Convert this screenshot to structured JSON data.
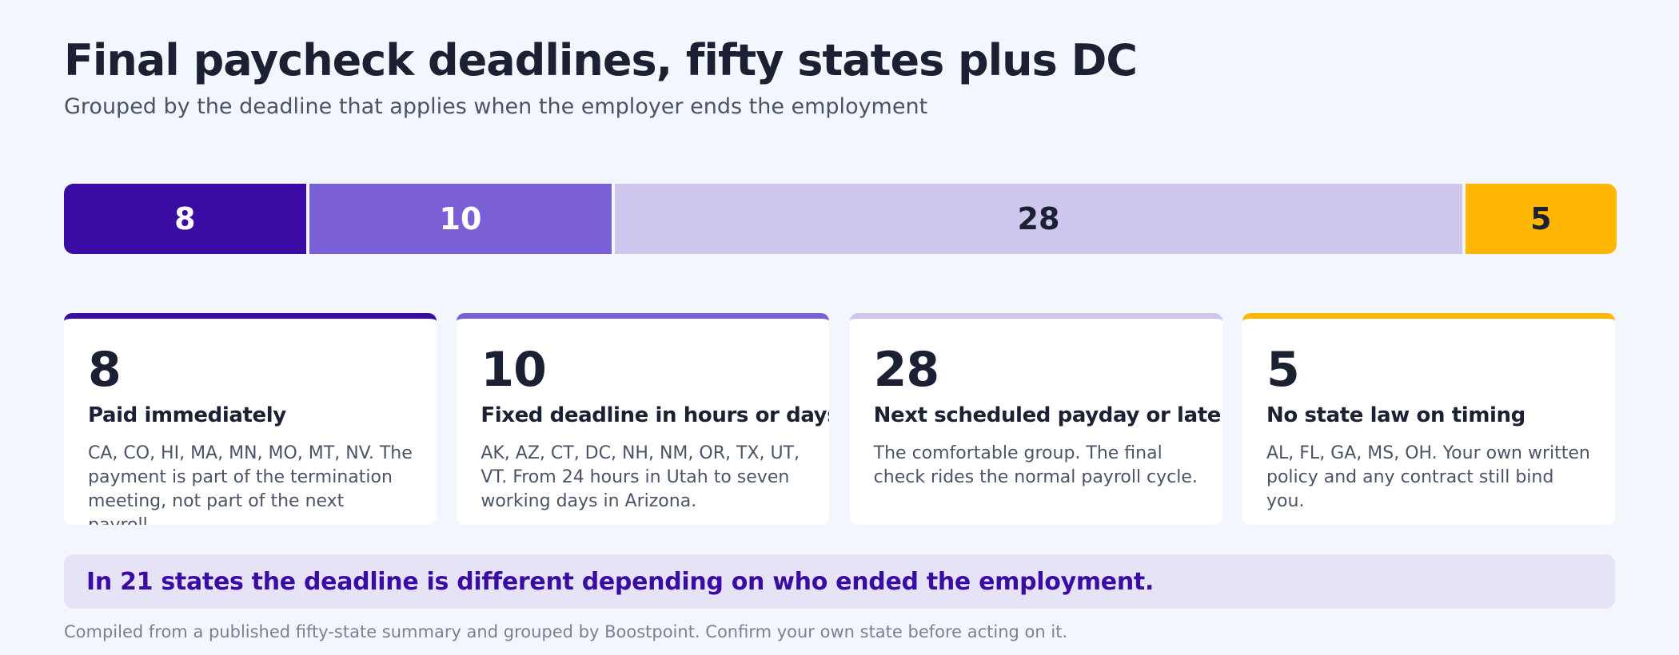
{
  "title": "Final paycheck deadlines, fifty states plus DC",
  "subtitle": "Grouped by the deadline that applies when the employer ends the employment",
  "chart_data": {
    "type": "bar",
    "orientation": "horizontal-stacked",
    "title": "Final paycheck deadlines, fifty states plus DC",
    "subtitle": "Grouped by the deadline that applies when the employer ends the employment",
    "categories": [
      "Paid immediately",
      "Fixed deadline in hours or days",
      "Next scheduled payday or later",
      "No state law on timing"
    ],
    "values": [
      8,
      10,
      28,
      5
    ],
    "total": 51,
    "colors": [
      "#3a0ca3",
      "#7b5fd6",
      "#cec6ed",
      "#ffb703"
    ],
    "label_colors": [
      "#ffffff",
      "#ffffff",
      "#1b2033",
      "#1b2033"
    ],
    "grid": false,
    "legend": "none"
  },
  "cards": [
    {
      "count": "8",
      "title": "Paid immediately",
      "body": "CA, CO, HI, MA, MN, MO, MT, NV. The payment is part of the termination meeting, not part of the next payroll.",
      "accent": "#3a0ca3"
    },
    {
      "count": "10",
      "title": "Fixed deadline in hours or days",
      "body": "AK, AZ, CT, DC, NH, NM, OR, TX, UT, VT. From 24 hours in Utah to seven working days in Arizona.",
      "accent": "#7b5fd6"
    },
    {
      "count": "28",
      "title": "Next scheduled payday or later",
      "body": "The comfortable group. The final check rides the normal payroll cycle.",
      "accent": "#cec6ed"
    },
    {
      "count": "5",
      "title": "No state law on timing",
      "body": "AL, FL, GA, MS, OH. Your own written policy and any contract still bind you.",
      "accent": "#ffb703"
    }
  ],
  "callout": "In 21 states the deadline is different depending on who ended the employment.",
  "footnote": "Compiled from a published fifty-state summary and grouped by Boostpoint. Confirm your own state before acting on it."
}
